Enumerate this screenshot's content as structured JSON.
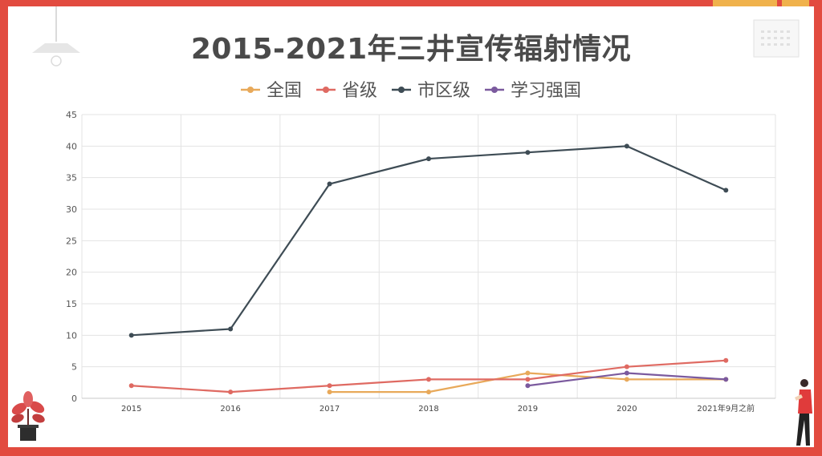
{
  "slide": {
    "title": "2015-2021年三井宣传辐射情况"
  },
  "chart_data": {
    "type": "line",
    "title": "2015-2021年三井宣传辐射情况",
    "categories": [
      "2015",
      "2016",
      "2017",
      "2018",
      "2019",
      "2020",
      "2021年9月之前"
    ],
    "ylim": [
      0,
      45
    ],
    "yticks": [
      0,
      5,
      10,
      15,
      20,
      25,
      30,
      35,
      40,
      45
    ],
    "grid": true,
    "legend_position": "top-center",
    "series": [
      {
        "name": "全国",
        "color": "#e8a95a",
        "values": [
          null,
          null,
          1,
          1,
          4,
          3,
          3
        ]
      },
      {
        "name": "省级",
        "color": "#df6a62",
        "values": [
          2,
          1,
          2,
          3,
          3,
          5,
          6
        ]
      },
      {
        "name": "市区级",
        "color": "#3e4c55",
        "values": [
          10,
          11,
          34,
          38,
          39,
          40,
          33
        ]
      },
      {
        "name": "学习强国",
        "color": "#7b5a9e",
        "values": [
          null,
          null,
          null,
          null,
          2,
          4,
          3
        ]
      }
    ]
  }
}
